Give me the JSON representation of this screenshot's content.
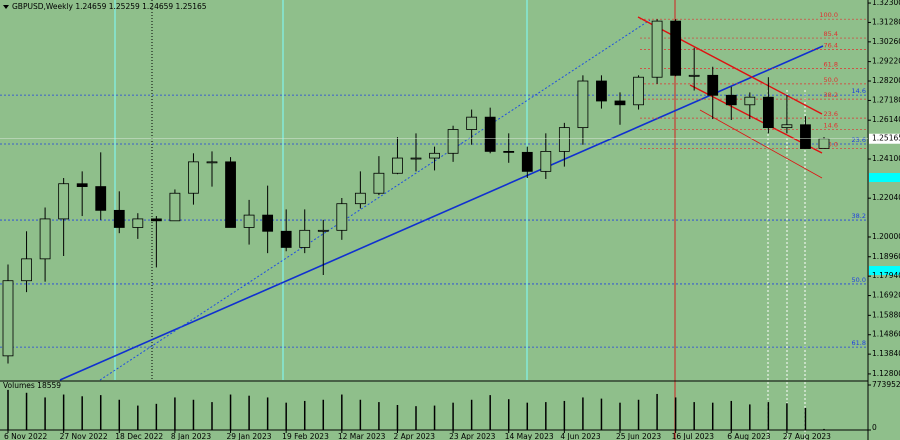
{
  "chart_data": {
    "type": "candlestick",
    "header": "GBPUSD,Weekly  1.24659 1.25259 1.24659 1.25165",
    "categories": [
      "6 Nov 2022",
      null,
      null,
      "27 Nov 2022",
      null,
      null,
      "18 Dec 2022",
      null,
      null,
      "8 Jan 2023",
      null,
      null,
      "29 Jan 2023",
      null,
      null,
      "19 Feb 2023",
      null,
      null,
      "12 Mar 2023",
      null,
      null,
      "2 Apr 2023",
      null,
      null,
      "23 Apr 2023",
      null,
      null,
      "14 May 2023",
      null,
      null,
      "4 Jun 2023",
      null,
      null,
      "25 Jun 2023",
      null,
      null,
      "16 Jul 2023",
      null,
      null,
      "6 Aug 2023",
      null,
      null,
      "27 Aug 2023",
      null,
      null
    ],
    "open": [
      1.1375,
      1.177,
      1.1885,
      1.2095,
      1.228,
      1.2265,
      1.214,
      1.205,
      1.2095,
      1.2085,
      1.223,
      1.2395,
      1.2395,
      1.205,
      1.2115,
      1.203,
      1.1945,
      1.2035,
      1.2035,
      1.2175,
      1.223,
      1.2335,
      1.2415,
      1.2415,
      1.244,
      1.2565,
      1.263,
      1.245,
      1.2445,
      1.2345,
      1.245,
      1.2575,
      1.282,
      1.2715,
      1.2695,
      1.284,
      1.3135,
      1.285,
      1.285,
      1.2745,
      1.2695,
      1.2735,
      1.2575,
      1.259,
      1.24659
    ],
    "high": [
      1.1855,
      1.203,
      1.2155,
      1.231,
      1.2345,
      1.2445,
      1.224,
      1.2125,
      1.211,
      1.225,
      1.244,
      1.245,
      1.242,
      1.2195,
      1.227,
      1.2145,
      1.2145,
      1.209,
      1.2205,
      1.2345,
      1.2425,
      1.2525,
      1.2545,
      1.2475,
      1.2585,
      1.267,
      1.268,
      1.2545,
      1.2475,
      1.2545,
      1.26,
      1.285,
      1.285,
      1.276,
      1.285,
      1.3145,
      1.3145,
      1.2995,
      1.2895,
      1.279,
      1.276,
      1.284,
      1.2745,
      1.2635,
      1.25259
    ],
    "low": [
      1.1335,
      1.171,
      1.1765,
      1.19,
      1.211,
      1.209,
      1.202,
      1.199,
      1.184,
      1.2085,
      1.217,
      1.2265,
      1.205,
      1.196,
      1.1915,
      1.1925,
      1.1915,
      1.18,
      1.1985,
      1.215,
      1.222,
      1.233,
      1.2345,
      1.235,
      1.2395,
      1.2485,
      1.244,
      1.239,
      1.231,
      1.2305,
      1.237,
      1.2485,
      1.2675,
      1.259,
      1.267,
      1.2805,
      1.2845,
      1.277,
      1.262,
      1.2615,
      1.262,
      1.2545,
      1.2545,
      1.2465,
      1.24659
    ],
    "close": [
      1.177,
      1.1885,
      1.2095,
      1.228,
      1.2265,
      1.214,
      1.205,
      1.2095,
      1.2085,
      1.223,
      1.2395,
      1.2395,
      1.205,
      1.2115,
      1.203,
      1.1945,
      1.2035,
      1.2035,
      1.2175,
      1.223,
      1.2335,
      1.2415,
      1.2415,
      1.244,
      1.2565,
      1.263,
      1.245,
      1.2445,
      1.2345,
      1.245,
      1.2575,
      1.282,
      1.2715,
      1.2695,
      1.284,
      1.3135,
      1.285,
      1.285,
      1.2745,
      1.2695,
      1.2735,
      1.2575,
      1.259,
      1.2465,
      1.25165
    ],
    "ylim": [
      1.1248,
      1.3246
    ],
    "yticks": [
      {
        "value": 1.323,
        "label": "1.32300"
      },
      {
        "value": 1.3128,
        "label": "1.31280"
      },
      {
        "value": 1.3026,
        "label": "1.30260"
      },
      {
        "value": 1.2922,
        "label": "1.29220"
      },
      {
        "value": 1.282,
        "label": "1.28200"
      },
      {
        "value": 1.2718,
        "label": "1.27180"
      },
      {
        "value": 1.2614,
        "label": "1.26140"
      },
      {
        "value": 1.241,
        "label": "1.24100"
      },
      {
        "value": 1.2204,
        "label": "1.22040"
      },
      {
        "value": 1.2,
        "label": "1.20000"
      },
      {
        "value": 1.1896,
        "label": "1.18960"
      },
      {
        "value": 1.1794,
        "label": "1.17940"
      },
      {
        "value": 1.1692,
        "label": "1.16920"
      },
      {
        "value": 1.1588,
        "label": "1.15880"
      },
      {
        "value": 1.1486,
        "label": "1.14860"
      },
      {
        "value": 1.1384,
        "label": "1.13840"
      },
      {
        "value": 1.128,
        "label": "1.12800"
      }
    ],
    "current_price": 1.25165,
    "fib_red": [
      {
        "label": "100.0",
        "value": 1.3145
      },
      {
        "label": "85.4",
        "value": 1.3046
      },
      {
        "label": "76.4",
        "value": 1.2985
      },
      {
        "label": "61.8",
        "value": 1.2885
      },
      {
        "label": "50.0",
        "value": 1.2805
      },
      {
        "label": "38.2",
        "value": 1.2725
      },
      {
        "label": "23.6",
        "value": 1.2625
      },
      {
        "label": "14.6",
        "value": 1.2564
      },
      {
        "label": "0.0",
        "value": 1.2465
      }
    ],
    "fib_blue": [
      {
        "label": "14.6",
        "value": 1.2746
      },
      {
        "label": "23.6",
        "value": 1.2489
      },
      {
        "label": "38.2",
        "value": 1.2089
      },
      {
        "label": "50.0",
        "value": 1.1753
      },
      {
        "label": "61.8",
        "value": 1.1421
      }
    ],
    "volume_label": "Volumes 18559",
    "volumes": [
      690000,
      640000,
      560000,
      610000,
      580000,
      600000,
      520000,
      420000,
      450000,
      560000,
      520000,
      480000,
      610000,
      590000,
      560000,
      470000,
      500000,
      520000,
      610000,
      520000,
      480000,
      430000,
      410000,
      420000,
      470000,
      520000,
      600000,
      530000,
      470000,
      480000,
      500000,
      560000,
      540000,
      470000,
      520000,
      620000,
      560000,
      480000,
      470000,
      500000,
      440000,
      480000,
      460000,
      380000,
      18559
    ],
    "vlim": [
      0,
      773952
    ],
    "vticks": [
      0,
      773952
    ]
  }
}
